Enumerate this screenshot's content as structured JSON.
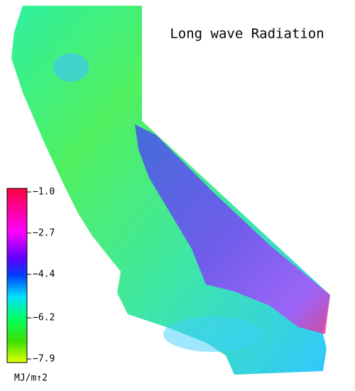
{
  "map": {
    "title": "Long wave Radiation",
    "colorbar": {
      "ticks": [
        {
          "value": -1.0,
          "label": "−1.0"
        },
        {
          "value": -2.7,
          "label": "−2.7"
        },
        {
          "value": -4.4,
          "label": "−4.4"
        },
        {
          "value": -6.2,
          "label": "−6.2"
        },
        {
          "value": -7.9,
          "label": "−7.9"
        }
      ],
      "unit": "MJ/m↑2"
    }
  }
}
